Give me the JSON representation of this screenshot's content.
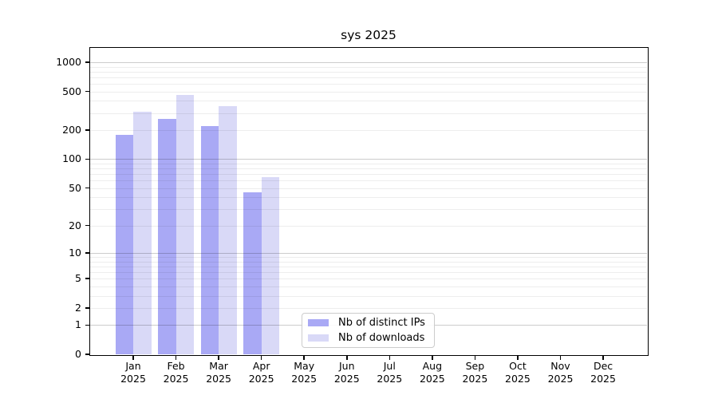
{
  "chart_data": {
    "type": "bar",
    "title": "sys 2025",
    "categories": [
      "Jan",
      "Feb",
      "Mar",
      "Apr",
      "May",
      "Jun",
      "Jul",
      "Aug",
      "Sep",
      "Oct",
      "Nov",
      "Dec"
    ],
    "category_year": "2025",
    "series": [
      {
        "name": "Nb of distinct IPs",
        "color": "#a9a9f5",
        "values": [
          180,
          260,
          220,
          45,
          0,
          0,
          0,
          0,
          0,
          0,
          0,
          0
        ]
      },
      {
        "name": "Nb of downloads",
        "color": "#d9d9f7",
        "values": [
          310,
          460,
          350,
          65,
          0,
          0,
          0,
          0,
          0,
          0,
          0,
          0
        ]
      }
    ],
    "yscale": "log1p",
    "yticks": [
      0,
      1,
      2,
      5,
      10,
      20,
      50,
      100,
      200,
      500,
      1000
    ],
    "ylim": [
      0,
      1360
    ],
    "grid": true,
    "legend_position": "inside-bottom-center"
  },
  "colors": {
    "major_grid": "rgba(0,0,0,0.20)",
    "minor_grid": "rgba(0,0,0,0.07)",
    "spine": "#000000",
    "background": "#ffffff"
  }
}
